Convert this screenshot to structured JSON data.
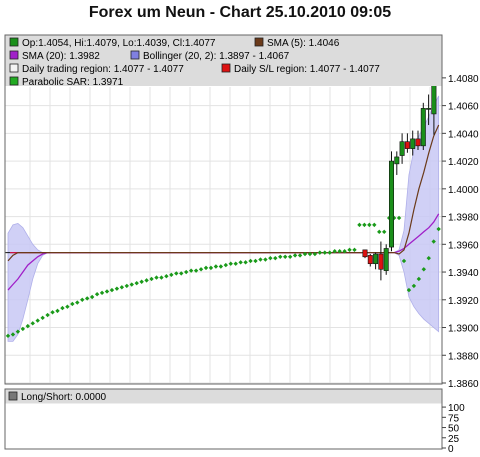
{
  "title": "Forex um Neun - Chart 25.10.2010 09:05",
  "legend": {
    "ohlc": "Op:1.4054, Hi:1.4079, Lo:1.4039, Cl:1.4077",
    "sma5": "SMA (5): 1.4046",
    "sma20": "SMA (20): 1.3982",
    "bollinger": "Bollinger (20, 2): 1.3897 - 1.4067",
    "daily_trading": "Daily trading region: 1.4077 - 1.4077",
    "daily_sl": "Daily S/L region: 1.4077 - 1.4077",
    "psar": "Parabolic SAR: 1.3971"
  },
  "sub_legend": {
    "long_short": "Long/Short: 0.0000"
  },
  "colors": {
    "up_candle": "#1a8f1a",
    "down_candle": "#dd1111",
    "sma5": "#6b3a1a",
    "sma20": "#a020c8",
    "bollinger_fill": "#c8c8f5",
    "bollinger_legend": "#8080e0",
    "psar": "#1a9a1a",
    "trading_line": "#cc1144",
    "grid": "#e3e3e3",
    "legend_bg": "#dcdcdc"
  },
  "chart_data": [
    {
      "type": "candlestick",
      "ylim": [
        1.386,
        1.409
      ],
      "y_ticks": [
        "1.4080",
        "1.4060",
        "1.4040",
        "1.4020",
        "1.4000",
        "1.3980",
        "1.3960",
        "1.3940",
        "1.3920",
        "1.3900",
        "1.3880",
        "1.3860"
      ],
      "grid": true,
      "candles": [
        {
          "o": 1.3956,
          "h": 1.3956,
          "l": 1.395,
          "c": 1.3951
        },
        {
          "o": 1.3952,
          "h": 1.3953,
          "l": 1.3944,
          "c": 1.3946
        },
        {
          "o": 1.3946,
          "h": 1.3954,
          "l": 1.3942,
          "c": 1.3953
        },
        {
          "o": 1.3953,
          "h": 1.3962,
          "l": 1.3934,
          "c": 1.3942
        },
        {
          "o": 1.3941,
          "h": 1.396,
          "l": 1.3938,
          "c": 1.3957
        },
        {
          "o": 1.3958,
          "h": 1.4027,
          "l": 1.3955,
          "c": 1.402
        },
        {
          "o": 1.4018,
          "h": 1.4027,
          "l": 1.401,
          "c": 1.4023
        },
        {
          "o": 1.4024,
          "h": 1.404,
          "l": 1.4018,
          "c": 1.4034
        },
        {
          "o": 1.4034,
          "h": 1.404,
          "l": 1.4026,
          "c": 1.4029
        },
        {
          "o": 1.4029,
          "h": 1.4042,
          "l": 1.4024,
          "c": 1.4036
        },
        {
          "o": 1.4036,
          "h": 1.4042,
          "l": 1.4028,
          "c": 1.4031
        },
        {
          "o": 1.4031,
          "h": 1.4062,
          "l": 1.4028,
          "c": 1.4058
        },
        {
          "o": 1.4058,
          "h": 1.4068,
          "l": 1.4046,
          "c": 1.4058
        },
        {
          "o": 1.4054,
          "h": 1.4079,
          "l": 1.4039,
          "c": 1.4077
        }
      ],
      "sma20": [
        1.3927,
        1.3931,
        1.3935,
        1.394,
        1.3945,
        1.3948,
        1.3951,
        1.3953,
        1.3954,
        1.3954,
        1.3954,
        1.3954,
        1.3954,
        1.3954,
        1.3954,
        1.3954,
        1.3954,
        1.3954,
        1.3954,
        1.3954,
        1.3954,
        1.3954,
        1.3954,
        1.3954,
        1.3954,
        1.3954,
        1.3954,
        1.3954,
        1.3954,
        1.3954,
        1.3954,
        1.3954,
        1.3954,
        1.3954,
        1.3954,
        1.3954,
        1.3954,
        1.3954,
        1.3954,
        1.3954,
        1.3954,
        1.3954,
        1.3954,
        1.3954,
        1.3954,
        1.3954,
        1.3954,
        1.3954,
        1.3954,
        1.3954,
        1.3954,
        1.3954,
        1.3954,
        1.3954,
        1.3954,
        1.3954,
        1.3954,
        1.3954,
        1.3954,
        1.3954,
        1.3954,
        1.3954,
        1.3954,
        1.3954,
        1.3954,
        1.3954,
        1.3954,
        1.3954,
        1.3954,
        1.3954,
        1.3954,
        1.3954,
        1.3954,
        1.3954,
        1.3954,
        1.3954,
        1.3954,
        1.3954,
        1.3954,
        1.3955,
        1.3957,
        1.396,
        1.3963,
        1.3966,
        1.3969,
        1.3972,
        1.3976,
        1.3982
      ],
      "sma5": [
        1.3948,
        1.3952,
        1.3954,
        1.3954,
        1.3954,
        1.3954,
        1.3954,
        1.3954,
        1.3954,
        1.3954,
        1.3954,
        1.3954,
        1.3954,
        1.3954,
        1.3954,
        1.3954,
        1.3954,
        1.3954,
        1.3954,
        1.3954,
        1.3954,
        1.3954,
        1.3954,
        1.3954,
        1.3954,
        1.3954,
        1.3954,
        1.3954,
        1.3954,
        1.3954,
        1.3954,
        1.3954,
        1.3954,
        1.3954,
        1.3954,
        1.3954,
        1.3954,
        1.3954,
        1.3954,
        1.3954,
        1.3954,
        1.3954,
        1.3954,
        1.3954,
        1.3954,
        1.3954,
        1.3954,
        1.3954,
        1.3954,
        1.3954,
        1.3954,
        1.3954,
        1.3954,
        1.3954,
        1.3954,
        1.3954,
        1.3954,
        1.3954,
        1.3954,
        1.3954,
        1.3954,
        1.3954,
        1.3954,
        1.3954,
        1.3954,
        1.3954,
        1.3954,
        1.3954,
        1.3954,
        1.3954,
        1.3954,
        1.3954,
        1.3954,
        1.3954,
        1.3954,
        1.3954,
        1.3954,
        1.3954,
        1.3954,
        1.3953,
        1.3956,
        1.3968,
        1.3985,
        1.4,
        1.4012,
        1.4026,
        1.4038,
        1.4046
      ],
      "boll_upper": [
        1.3968,
        1.3974,
        1.3975,
        1.3972,
        1.3966,
        1.396,
        1.3956,
        1.3954,
        1.3954,
        1.3954,
        1.3954,
        1.3954,
        1.3954,
        1.3954,
        1.3954,
        1.3954,
        1.3954,
        1.3954,
        1.3954,
        1.3954,
        1.3954,
        1.3954,
        1.3954,
        1.3954,
        1.3954,
        1.3954,
        1.3954,
        1.3954,
        1.3954,
        1.3954,
        1.3954,
        1.3954,
        1.3954,
        1.3954,
        1.3954,
        1.3954,
        1.3954,
        1.3954,
        1.3954,
        1.3954,
        1.3954,
        1.3954,
        1.3954,
        1.3954,
        1.3954,
        1.3954,
        1.3954,
        1.3954,
        1.3954,
        1.3954,
        1.3954,
        1.3954,
        1.3954,
        1.3954,
        1.3954,
        1.3954,
        1.3954,
        1.3954,
        1.3954,
        1.3954,
        1.3954,
        1.3954,
        1.3954,
        1.3954,
        1.3954,
        1.3954,
        1.3954,
        1.3954,
        1.3954,
        1.3954,
        1.3954,
        1.3954,
        1.3954,
        1.3954,
        1.3954,
        1.3954,
        1.3954,
        1.3954,
        1.3954,
        1.3956,
        1.397,
        1.401,
        1.4028,
        1.4038,
        1.4045,
        1.4052,
        1.406,
        1.4067
      ],
      "boll_lower": [
        1.389,
        1.389,
        1.3895,
        1.3906,
        1.392,
        1.3935,
        1.3946,
        1.3952,
        1.3954,
        1.3954,
        1.3954,
        1.3954,
        1.3954,
        1.3954,
        1.3954,
        1.3954,
        1.3954,
        1.3954,
        1.3954,
        1.3954,
        1.3954,
        1.3954,
        1.3954,
        1.3954,
        1.3954,
        1.3954,
        1.3954,
        1.3954,
        1.3954,
        1.3954,
        1.3954,
        1.3954,
        1.3954,
        1.3954,
        1.3954,
        1.3954,
        1.3954,
        1.3954,
        1.3954,
        1.3954,
        1.3954,
        1.3954,
        1.3954,
        1.3954,
        1.3954,
        1.3954,
        1.3954,
        1.3954,
        1.3954,
        1.3954,
        1.3954,
        1.3954,
        1.3954,
        1.3954,
        1.3954,
        1.3954,
        1.3954,
        1.3954,
        1.3954,
        1.3954,
        1.3954,
        1.3954,
        1.3954,
        1.3954,
        1.3954,
        1.3954,
        1.3954,
        1.3954,
        1.3954,
        1.3954,
        1.3954,
        1.3954,
        1.3954,
        1.3954,
        1.3954,
        1.3954,
        1.3954,
        1.3954,
        1.3954,
        1.3952,
        1.394,
        1.3922,
        1.3915,
        1.391,
        1.3906,
        1.3903,
        1.39,
        1.3897
      ],
      "psar": [
        1.3894,
        1.3895,
        1.3897,
        1.3899,
        1.3901,
        1.3903,
        1.3905,
        1.3907,
        1.3909,
        1.3911,
        1.3912,
        1.3914,
        1.3915,
        1.3917,
        1.3918,
        1.392,
        1.3921,
        1.3922,
        1.3924,
        1.3925,
        1.3926,
        1.3927,
        1.3928,
        1.3929,
        1.393,
        1.3931,
        1.3932,
        1.3933,
        1.3934,
        1.3935,
        1.3936,
        1.3936,
        1.3937,
        1.3938,
        1.3939,
        1.3939,
        1.394,
        1.3941,
        1.3941,
        1.3942,
        1.3943,
        1.3943,
        1.3944,
        1.3944,
        1.3945,
        1.3946,
        1.3946,
        1.3947,
        1.3947,
        1.3948,
        1.3948,
        1.3949,
        1.3949,
        1.395,
        1.395,
        1.3951,
        1.3951,
        1.3951,
        1.3952,
        1.3952,
        1.3953,
        1.3953,
        1.3953,
        1.3954,
        1.3954,
        1.3954,
        1.3955,
        1.3955,
        1.3955,
        1.3956,
        1.3956,
        1.3974,
        1.3974,
        1.3974,
        1.3974,
        1.3969,
        1.3969,
        1.3979,
        1.3979,
        1.3979,
        1.3948,
        1.3927,
        1.393,
        1.3935,
        1.3942,
        1.395,
        1.3962,
        1.3971
      ],
      "trading_level": 1.3954,
      "crosshair_y": 1.3954
    },
    {
      "type": "indicator",
      "name": "Long/Short",
      "value": 0.0,
      "ylim": [
        0,
        110
      ],
      "y_ticks": [
        "100",
        "75",
        "50",
        "25",
        "0"
      ]
    }
  ]
}
